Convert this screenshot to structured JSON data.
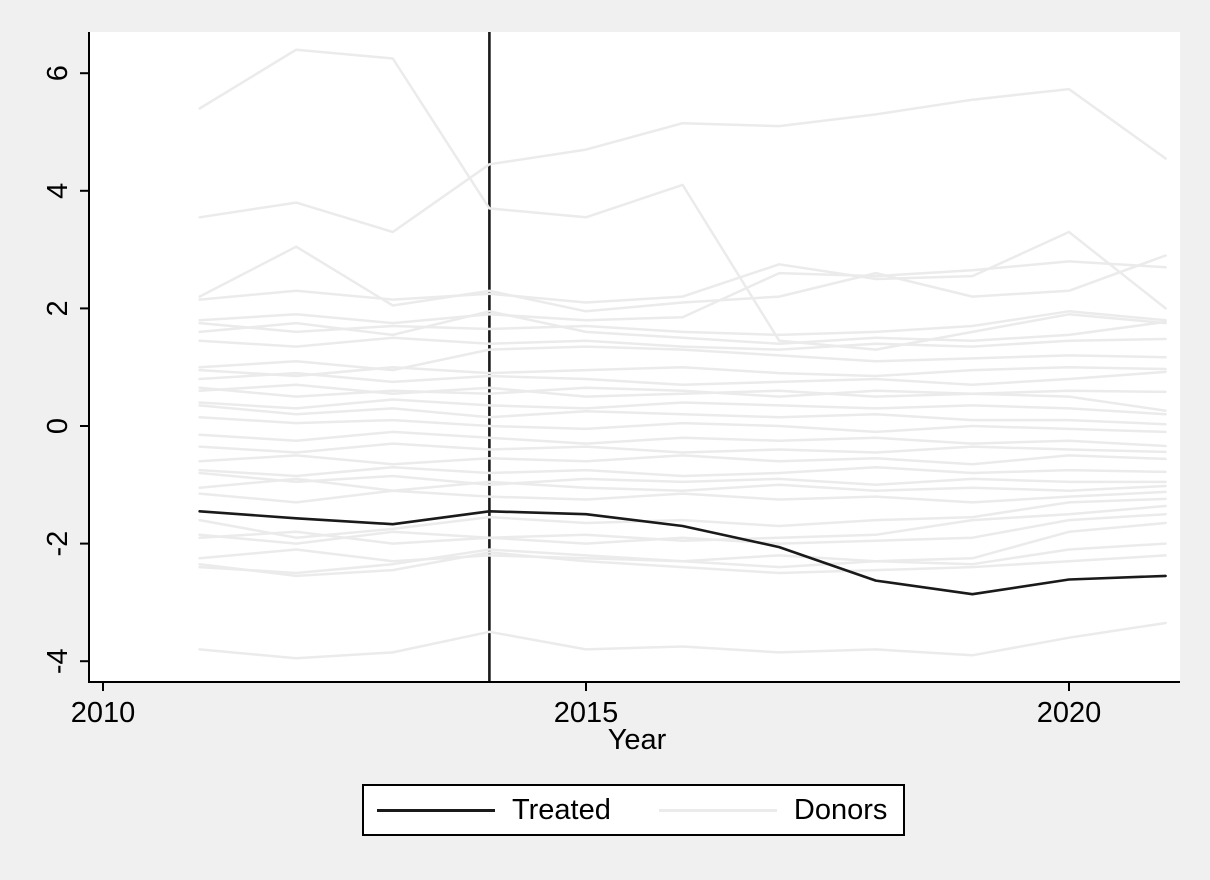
{
  "figure": {
    "background_color": "#f0f0f0",
    "plot_background_color": "#ffffff",
    "axis_color": "#000000",
    "text_color": "#000000"
  },
  "chart_data": {
    "type": "line",
    "title": "",
    "xlabel": "Year",
    "ylabel": "",
    "grid": false,
    "xlim": [
      2009.85,
      2021.15
    ],
    "ylim": [
      -4.35,
      6.7
    ],
    "x_ticks": [
      2010,
      2015,
      2020
    ],
    "x_tick_labels": [
      "2010",
      "2015",
      "2020"
    ],
    "y_ticks": [
      6,
      4,
      2,
      0,
      -2,
      -4
    ],
    "y_tick_labels": [
      "6",
      "4",
      "2",
      "0",
      "-2",
      "-4"
    ],
    "treatment_vline_x": 2014,
    "vline_color": "#1a1a1a",
    "x": [
      2011,
      2012,
      2013,
      2014,
      2015,
      2016,
      2017,
      2018,
      2019,
      2020,
      2021
    ],
    "treated": {
      "name": "Treated",
      "color": "#1a1a1a",
      "values": [
        -1.45,
        -1.57,
        -1.67,
        -1.45,
        -1.5,
        -1.7,
        -2.06,
        -2.63,
        -2.86,
        -2.61,
        -2.55
      ]
    },
    "donors": {
      "name": "Donors",
      "color": "#ebebeb",
      "series": [
        [
          5.4,
          6.4,
          6.25,
          3.7,
          3.55,
          4.1,
          1.45,
          1.3,
          1.6,
          1.9,
          1.75
        ],
        [
          3.55,
          3.8,
          3.3,
          4.45,
          4.7,
          5.15,
          5.1,
          5.3,
          5.55,
          5.73,
          4.55
        ],
        [
          2.2,
          3.05,
          2.05,
          2.3,
          1.95,
          2.1,
          2.2,
          2.6,
          2.2,
          2.3,
          2.9
        ],
        [
          2.15,
          2.3,
          2.15,
          2.25,
          2.1,
          2.2,
          2.75,
          2.5,
          2.55,
          3.3,
          2.0
        ],
        [
          1.8,
          1.9,
          1.75,
          1.9,
          1.8,
          1.85,
          2.6,
          2.55,
          2.65,
          2.8,
          2.7
        ],
        [
          1.75,
          1.6,
          1.7,
          1.65,
          1.7,
          1.6,
          1.55,
          1.6,
          1.7,
          1.95,
          1.8
        ],
        [
          1.6,
          1.75,
          1.55,
          1.95,
          1.6,
          1.5,
          1.4,
          1.5,
          1.45,
          1.55,
          1.77
        ],
        [
          1.45,
          1.35,
          1.5,
          1.4,
          1.45,
          1.35,
          1.3,
          1.4,
          1.35,
          1.45,
          1.48
        ],
        [
          1.0,
          1.1,
          0.95,
          1.3,
          1.35,
          1.3,
          1.2,
          1.1,
          1.15,
          1.2,
          1.17
        ],
        [
          0.95,
          0.85,
          1.0,
          0.9,
          0.95,
          1.0,
          0.9,
          0.85,
          0.95,
          1.0,
          0.97
        ],
        [
          0.8,
          0.9,
          0.75,
          0.85,
          0.8,
          0.7,
          0.75,
          0.8,
          0.7,
          0.8,
          0.92
        ],
        [
          0.65,
          0.5,
          0.6,
          0.55,
          0.65,
          0.6,
          0.5,
          0.6,
          0.55,
          0.6,
          0.58
        ],
        [
          0.6,
          0.7,
          0.55,
          0.65,
          0.5,
          0.55,
          0.6,
          0.5,
          0.55,
          0.5,
          0.26
        ],
        [
          0.4,
          0.3,
          0.45,
          0.35,
          0.3,
          0.4,
          0.35,
          0.3,
          0.35,
          0.3,
          0.2
        ],
        [
          0.35,
          0.2,
          0.3,
          0.15,
          0.25,
          0.2,
          0.15,
          0.2,
          0.1,
          0.1,
          0.03
        ],
        [
          0.15,
          0.05,
          0.1,
          0.0,
          -0.05,
          0.05,
          0.0,
          -0.1,
          0.0,
          -0.05,
          -0.1
        ],
        [
          -0.15,
          -0.25,
          -0.1,
          -0.2,
          -0.3,
          -0.2,
          -0.25,
          -0.2,
          -0.3,
          -0.25,
          -0.34
        ],
        [
          -0.35,
          -0.45,
          -0.3,
          -0.4,
          -0.35,
          -0.45,
          -0.4,
          -0.45,
          -0.35,
          -0.4,
          -0.44
        ],
        [
          -0.6,
          -0.5,
          -0.65,
          -0.55,
          -0.6,
          -0.5,
          -0.6,
          -0.55,
          -0.65,
          -0.5,
          -0.56
        ],
        [
          -0.75,
          -0.85,
          -0.7,
          -0.8,
          -0.75,
          -0.85,
          -0.8,
          -0.7,
          -0.8,
          -0.75,
          -0.78
        ],
        [
          -0.8,
          -0.95,
          -0.85,
          -1.0,
          -0.9,
          -0.95,
          -0.9,
          -1.0,
          -0.9,
          -0.95,
          -0.95
        ],
        [
          -1.05,
          -0.9,
          -1.1,
          -0.95,
          -1.05,
          -1.1,
          -1.0,
          -1.1,
          -1.05,
          -1.1,
          -1.02
        ],
        [
          -1.15,
          -1.3,
          -1.1,
          -1.2,
          -1.25,
          -1.15,
          -1.25,
          -1.2,
          -1.3,
          -1.2,
          -1.12
        ],
        [
          -1.6,
          -1.9,
          -1.75,
          -1.55,
          -1.65,
          -1.6,
          -1.7,
          -1.6,
          -1.55,
          -1.3,
          -1.24
        ],
        [
          -1.85,
          -2.0,
          -1.8,
          -1.9,
          -1.85,
          -1.95,
          -1.9,
          -1.85,
          -1.6,
          -1.5,
          -1.36
        ],
        [
          -1.9,
          -1.8,
          -2.0,
          -1.9,
          -2.0,
          -1.9,
          -2.0,
          -1.95,
          -1.9,
          -1.6,
          -1.5
        ],
        [
          -2.25,
          -2.1,
          -2.3,
          -2.2,
          -2.25,
          -2.3,
          -2.2,
          -2.3,
          -2.25,
          -1.8,
          -1.65
        ],
        [
          -2.4,
          -2.5,
          -2.35,
          -2.1,
          -2.2,
          -2.3,
          -2.4,
          -2.3,
          -2.35,
          -2.1,
          -2.0
        ],
        [
          -2.35,
          -2.55,
          -2.45,
          -2.15,
          -2.3,
          -2.4,
          -2.5,
          -2.45,
          -2.4,
          -2.3,
          -2.2
        ],
        [
          -3.8,
          -3.95,
          -3.85,
          -3.5,
          -3.8,
          -3.75,
          -3.85,
          -3.8,
          -3.9,
          -3.6,
          -3.35
        ]
      ]
    },
    "legend": {
      "position": "bottom-center",
      "entries": [
        {
          "label": "Treated",
          "color": "#1a1a1a"
        },
        {
          "label": "Donors",
          "color": "#ebebeb"
        }
      ]
    }
  }
}
